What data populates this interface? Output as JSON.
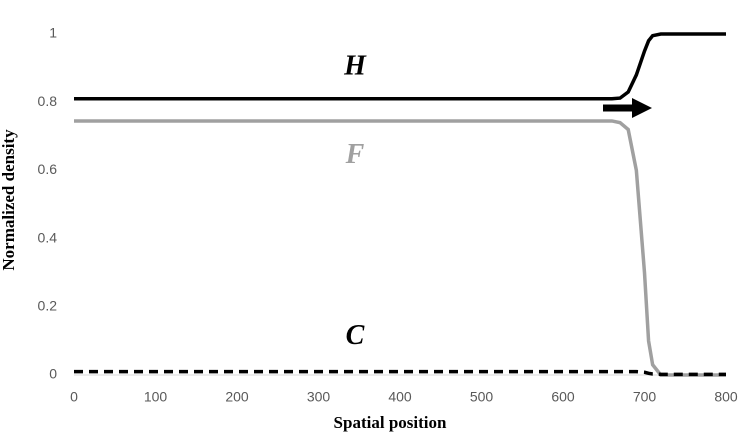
{
  "chart_data": {
    "type": "line",
    "xlabel": "Spatial position",
    "ylabel": "Normalized density",
    "x": [
      0,
      650,
      660,
      670,
      680,
      690,
      700,
      705,
      710,
      720,
      800
    ],
    "series": [
      {
        "name": "H",
        "color": "#000000",
        "dashed": false,
        "values": [
          0.81,
          0.81,
          0.81,
          0.812,
          0.83,
          0.88,
          0.95,
          0.98,
          0.995,
          1,
          1
        ]
      },
      {
        "name": "F",
        "color": "#a0a0a0",
        "dashed": false,
        "values": [
          0.745,
          0.745,
          0.745,
          0.74,
          0.72,
          0.6,
          0.3,
          0.1,
          0.03,
          0,
          0
        ]
      },
      {
        "name": "C",
        "color": "#000000",
        "dashed": true,
        "values": [
          0.01,
          0.01,
          0.01,
          0.01,
          0.01,
          0.01,
          0.008,
          0.005,
          0.003,
          0.002,
          0.002
        ]
      }
    ],
    "xlim": [
      0,
      800
    ],
    "xticks": [
      0,
      100,
      200,
      300,
      400,
      500,
      600,
      700,
      800
    ],
    "ylim": [
      0,
      1
    ],
    "yticks": [
      0,
      0.2,
      0.4,
      0.6,
      0.8,
      1
    ],
    "grid": false
  }
}
